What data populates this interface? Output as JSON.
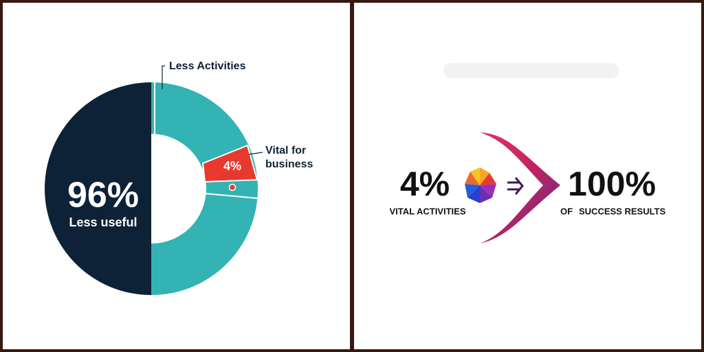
{
  "left_panel": {
    "slices": {
      "less_activities": "Less Activities",
      "vital_lines": [
        "Vital for",
        "business"
      ],
      "vital_value": "4%",
      "main_value": "96%",
      "main_label": "Less useful"
    }
  },
  "right_panel": {
    "left_value": "4%",
    "left_label": "VITAL ACTIVITIES",
    "right_value": "100%",
    "right_prefix": "OF",
    "right_label": "SUCCESS RESULTS"
  }
}
